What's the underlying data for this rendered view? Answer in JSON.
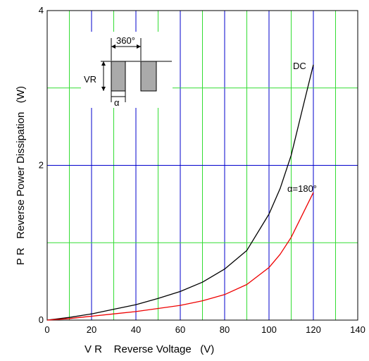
{
  "chart_data": {
    "type": "line",
    "xlabel": "V R    Reverse Voltage   (V)",
    "ylabel": "P R   Reverse Power Dissipation   (W)",
    "xlim": [
      0,
      140
    ],
    "ylim": [
      0,
      4
    ],
    "x_ticks": [
      "0",
      "20",
      "40",
      "60",
      "80",
      "100",
      "120",
      "140"
    ],
    "y_ticks": [
      "0",
      "2",
      "4"
    ],
    "grid": true,
    "colors": {
      "major_grid": "#0000cc",
      "minor_grid": "#33dd33",
      "frame": "#000000"
    },
    "series": [
      {
        "name": "DC",
        "color": "#000000",
        "x": [
          0,
          10,
          20,
          30,
          40,
          50,
          60,
          70,
          80,
          90,
          100,
          105,
          110,
          115,
          120
        ],
        "y": [
          0,
          0.035,
          0.08,
          0.14,
          0.2,
          0.28,
          0.37,
          0.49,
          0.66,
          0.9,
          1.37,
          1.7,
          2.13,
          2.72,
          3.3
        ]
      },
      {
        "name": "α=180°",
        "color": "#ee0000",
        "x": [
          0,
          10,
          20,
          30,
          40,
          50,
          60,
          70,
          80,
          90,
          100,
          105,
          110,
          115,
          120
        ],
        "y": [
          0,
          0.02,
          0.05,
          0.08,
          0.11,
          0.15,
          0.19,
          0.25,
          0.33,
          0.46,
          0.68,
          0.85,
          1.07,
          1.36,
          1.65
        ]
      }
    ],
    "inset": {
      "period_label": "360°",
      "amplitude_label": "VR",
      "width_label": "α"
    }
  }
}
